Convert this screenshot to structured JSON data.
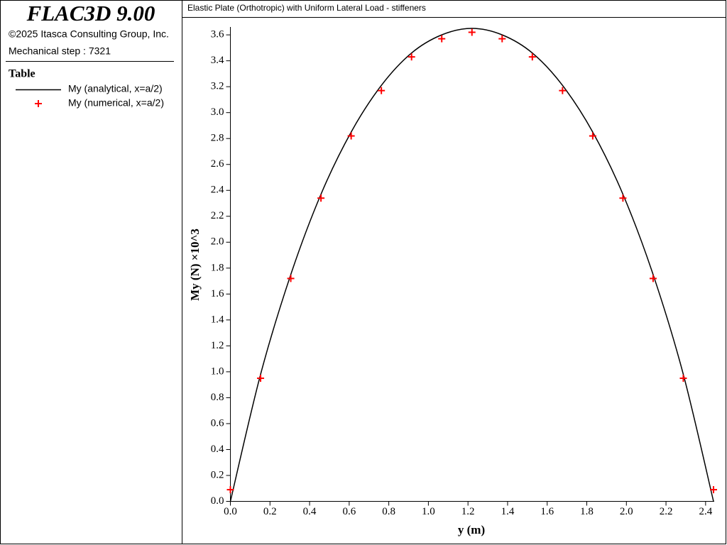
{
  "panel": {
    "app_title": "FLAC3D 9.00",
    "copyright": "©2025 Itasca Consulting Group, Inc.",
    "step": "Mechanical step : 7321",
    "legend_title": "Table"
  },
  "chart_data": {
    "type": "line",
    "title": "Elastic Plate (Orthotropic) with Uniform Lateral Load - stiffeners",
    "xlabel": "y (m)",
    "ylabel": "My (N)  ×10^3",
    "x": [
      0,
      0.1525,
      0.305,
      0.4575,
      0.61,
      0.7625,
      0.915,
      1.0675,
      1.22,
      1.3725,
      1.525,
      1.6775,
      1.83,
      1.9825,
      2.135,
      2.2875,
      2.44
    ],
    "series": [
      {
        "name": "My (analytical, x=a/2)",
        "color": "#000000",
        "style": "line",
        "values": [
          0,
          0.98,
          1.75,
          2.37,
          2.85,
          3.21,
          3.46,
          3.6,
          3.65,
          3.6,
          3.46,
          3.21,
          2.85,
          2.37,
          1.75,
          0.98,
          0
        ]
      },
      {
        "name": "My (numerical, x=a/2)",
        "color": "#ff0000",
        "style": "marker",
        "values": [
          0.09,
          0.95,
          1.72,
          2.34,
          2.82,
          3.17,
          3.43,
          3.57,
          3.62,
          3.57,
          3.43,
          3.17,
          2.82,
          2.34,
          1.72,
          0.95,
          0.09
        ]
      }
    ],
    "xlim": [
      0,
      2.44
    ],
    "ylim": [
      0,
      3.65
    ],
    "xticks": [
      {
        "value": 0,
        "label": "0.0"
      },
      0.2,
      0.4,
      0.6,
      0.8,
      {
        "value": 1,
        "label": "1.0"
      },
      1.2,
      1.4,
      1.6,
      1.8,
      {
        "value": 2,
        "label": "2.0"
      },
      2.2,
      2.4
    ],
    "yticks": [
      {
        "value": 0,
        "label": "0.0"
      },
      0.2,
      0.4,
      0.6,
      0.8,
      {
        "value": 1,
        "label": "1.0"
      },
      1.2,
      1.4,
      1.6,
      1.8,
      {
        "value": 2,
        "label": "2.0"
      },
      2.2,
      2.4,
      2.6,
      2.8,
      {
        "value": 3,
        "label": "3.0"
      },
      3.2,
      3.4,
      3.6
    ]
  }
}
